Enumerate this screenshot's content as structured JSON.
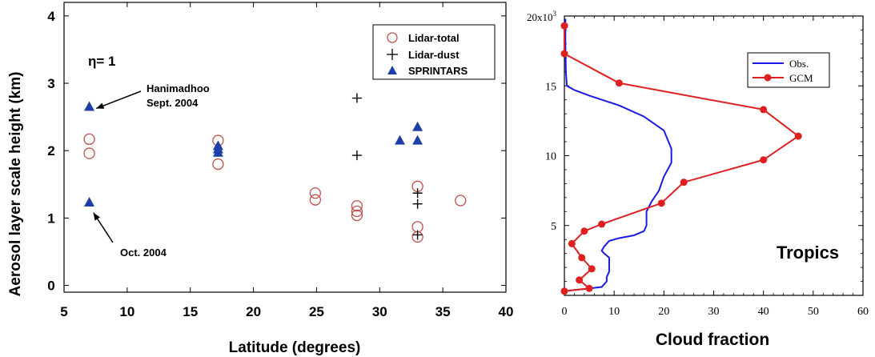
{
  "chart_data": [
    {
      "type": "scatter",
      "title": "",
      "xlabel": "Latitude (degrees)",
      "ylabel": "Aerosol layer scale height (km)",
      "xlim": [
        5,
        40
      ],
      "ylim": [
        -0.1,
        4.2
      ],
      "xticks": [
        5,
        10,
        15,
        20,
        25,
        30,
        35,
        40
      ],
      "yticks": [
        0,
        1,
        2,
        3,
        4
      ],
      "legend_position": "top-right",
      "grid": false,
      "colors": {
        "lidar_total": "#c0504d",
        "lidar_dust": "#000000",
        "sprintars": "#1f3fa8"
      },
      "series": [
        {
          "name": "Lidar-total",
          "marker": "open-circle",
          "x": [
            7.0,
            7.0,
            17.2,
            17.2,
            24.9,
            24.9,
            28.2,
            28.2,
            28.2,
            33.0,
            33.0,
            33.0,
            36.4
          ],
          "y": [
            2.17,
            1.96,
            2.15,
            1.8,
            1.37,
            1.27,
            1.18,
            1.1,
            1.04,
            1.47,
            0.87,
            0.72,
            1.26
          ]
        },
        {
          "name": "Lidar-dust",
          "marker": "plus",
          "x": [
            28.2,
            28.2,
            33.0,
            33.0,
            33.0
          ],
          "y": [
            2.78,
            1.93,
            1.37,
            1.21,
            0.75
          ]
        },
        {
          "name": "SPRINTARS",
          "marker": "filled-triangle",
          "x": [
            7.0,
            7.0,
            17.2,
            17.2,
            17.2,
            31.6,
            33.0,
            33.0
          ],
          "y": [
            2.65,
            1.23,
            2.07,
            2.02,
            1.97,
            2.15,
            2.35,
            2.15
          ]
        }
      ],
      "annotations": [
        {
          "text": "η= 1"
        },
        {
          "text": "Hanimadhoo",
          "text2": "Sept. 2004",
          "arrow_to": [
            7.3,
            2.65
          ]
        },
        {
          "text": "Oct. 2004",
          "arrow_to": [
            7.2,
            1.15
          ]
        }
      ]
    },
    {
      "type": "line",
      "title": "",
      "xlabel": "Cloud fraction",
      "ylabel": "",
      "xlim": [
        0,
        60
      ],
      "ylim": [
        0,
        20000
      ],
      "xticks": [
        0,
        10,
        20,
        30,
        40,
        50,
        60
      ],
      "yticks": [
        5,
        10,
        15
      ],
      "ytick_top_label": "20x10",
      "ytick_top_exponent": "3",
      "legend_position": "top-right",
      "grid": false,
      "annotation": "Tropics",
      "colors": {
        "obs": "#1a1ae6",
        "gcm": "#e02020"
      },
      "series": [
        {
          "name": "Obs.",
          "marker": "none",
          "x": [
            0.2,
            0.2,
            0.3,
            0.5,
            2,
            5,
            11,
            16,
            20,
            21.5,
            21.5,
            20,
            19,
            17.5,
            16.5,
            16.5,
            16.5,
            16,
            14,
            11,
            9,
            8.5,
            8,
            7.5,
            8,
            9,
            9,
            9,
            8.5,
            8.5,
            7.5,
            4,
            1
          ],
          "y": [
            19800,
            18000,
            16000,
            15000,
            14700,
            14300,
            13600,
            12800,
            11800,
            10500,
            9500,
            8500,
            7500,
            6700,
            6000,
            5500,
            5000,
            4600,
            4300,
            4100,
            3900,
            3700,
            3500,
            3200,
            3000,
            2700,
            2200,
            1700,
            1300,
            1000,
            600,
            450,
            350
          ]
        },
        {
          "name": "GCM",
          "marker": "filled-circle",
          "x": [
            0,
            0,
            0,
            11,
            40,
            47,
            40,
            24,
            19.5,
            7.5,
            4,
            1.5,
            3.5,
            5.5,
            3,
            5,
            0
          ],
          "y": [
            19300,
            19300,
            17300,
            15200,
            13300,
            11400,
            9700,
            8100,
            6600,
            5100,
            4600,
            3700,
            2700,
            1900,
            1100,
            500,
            300
          ]
        }
      ]
    }
  ]
}
